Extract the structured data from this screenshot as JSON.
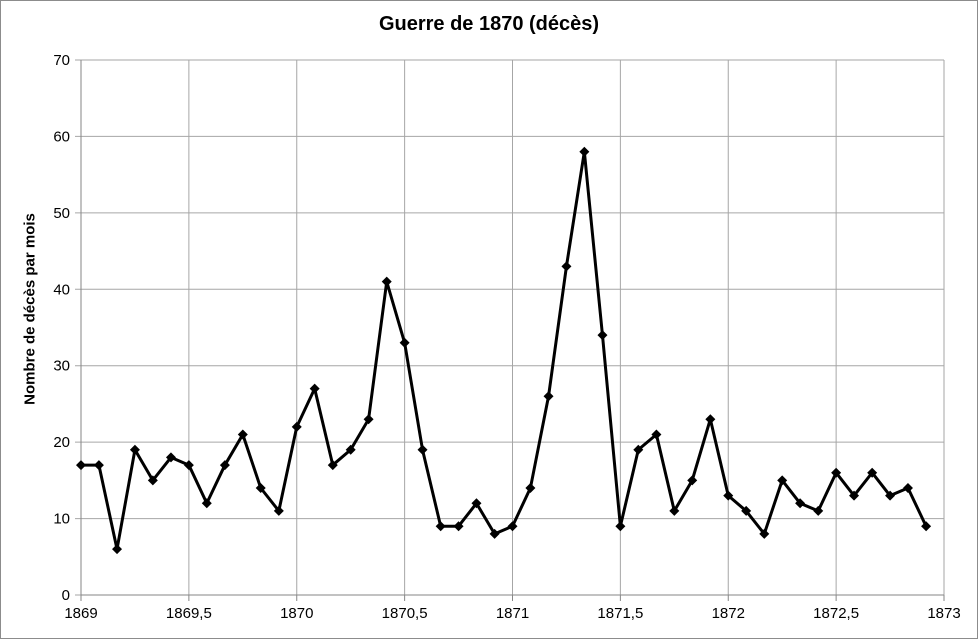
{
  "chart_data": {
    "type": "line",
    "title": "Guerre de 1870 (décès)",
    "xlabel": "",
    "ylabel": "Nombre de décès par mois",
    "xlim": [
      1869,
      1873
    ],
    "ylim": [
      0,
      70
    ],
    "x_ticks": [
      1869,
      1869.5,
      1870,
      1870.5,
      1871,
      1871.5,
      1872,
      1872.5,
      1873
    ],
    "x_tick_labels": [
      "1869",
      "1869,5",
      "1870",
      "1870,5",
      "1871",
      "1871,5",
      "1872",
      "1872,5",
      "1873"
    ],
    "y_ticks": [
      0,
      10,
      20,
      30,
      40,
      50,
      60,
      70
    ],
    "y_tick_labels": [
      "0",
      "10",
      "20",
      "30",
      "40",
      "50",
      "60",
      "70"
    ],
    "grid": true,
    "legend": "none",
    "marker": "diamond",
    "line_color": "#000000",
    "grid_color": "#a6a6a6",
    "series": [
      {
        "x": [
          1869.0,
          1869.083,
          1869.167,
          1869.25,
          1869.333,
          1869.417,
          1869.5,
          1869.583,
          1869.667,
          1869.75,
          1869.833,
          1869.917,
          1870.0,
          1870.083,
          1870.167,
          1870.25,
          1870.333,
          1870.417,
          1870.5,
          1870.583,
          1870.667,
          1870.75,
          1870.833,
          1870.917,
          1871.0,
          1871.083,
          1871.167,
          1871.25,
          1871.333,
          1871.417,
          1871.5,
          1871.583,
          1871.667,
          1871.75,
          1871.833,
          1871.917,
          1872.0,
          1872.083,
          1872.167,
          1872.25,
          1872.333,
          1872.417,
          1872.5,
          1872.583,
          1872.667,
          1872.75,
          1872.833,
          1872.917
        ],
        "values": [
          17,
          17,
          6,
          19,
          15,
          18,
          17,
          12,
          17,
          21,
          14,
          11,
          22,
          27,
          17,
          19,
          23,
          41,
          33,
          19,
          9,
          9,
          12,
          8,
          9,
          14,
          26,
          43,
          58,
          34,
          9,
          19,
          21,
          11,
          15,
          23,
          13,
          11,
          8,
          15,
          12,
          11,
          16,
          13,
          16,
          13,
          14,
          9
        ]
      }
    ]
  }
}
